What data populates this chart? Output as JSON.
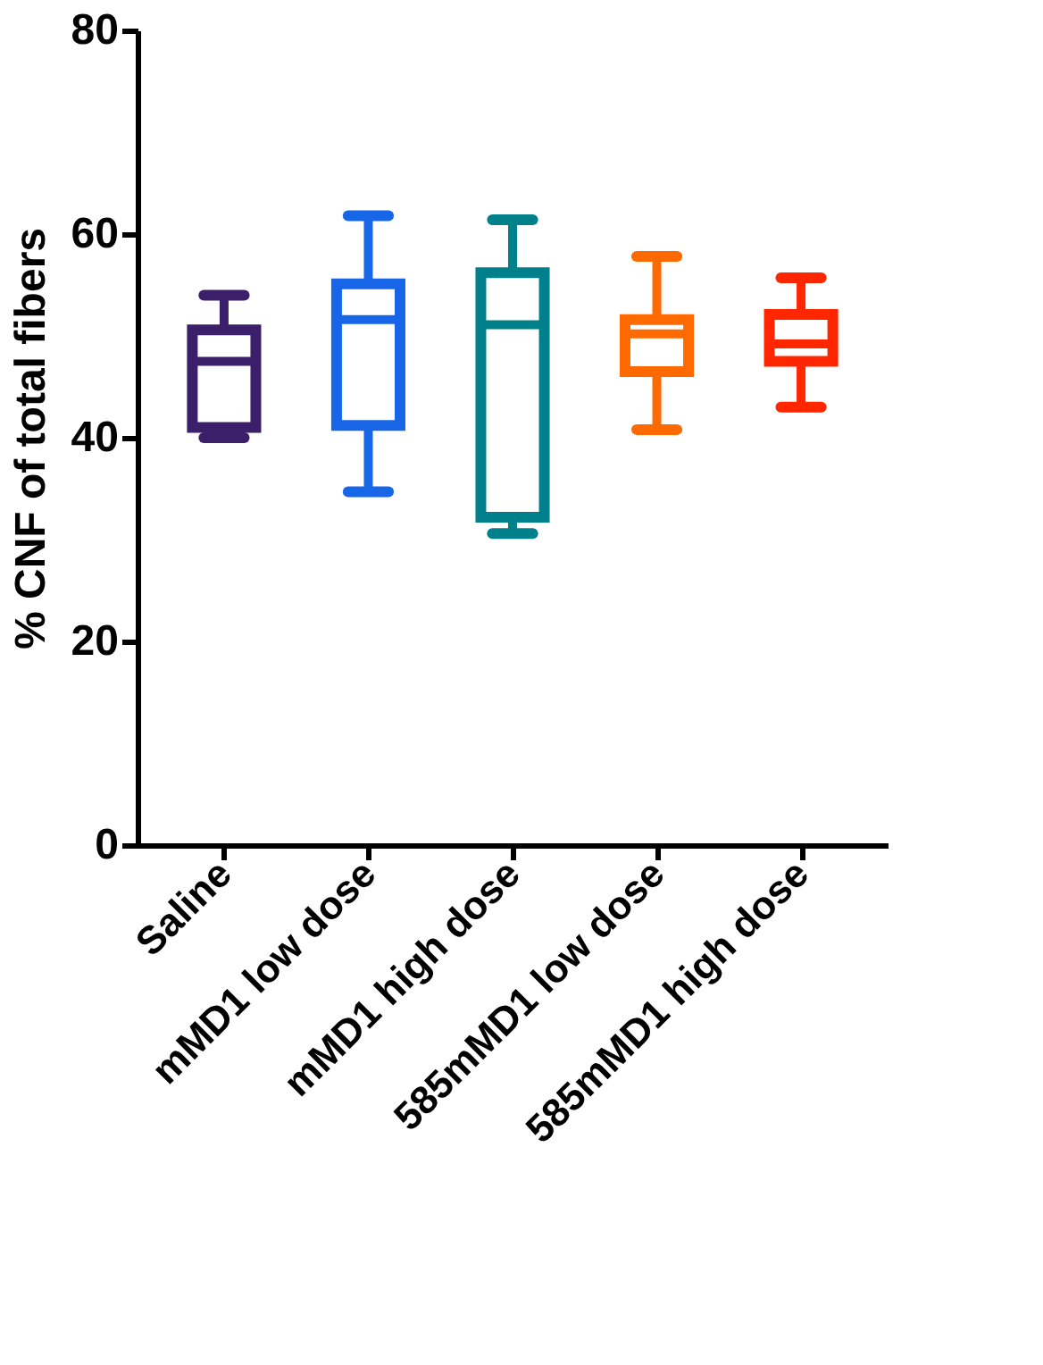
{
  "chart_data": {
    "type": "box",
    "ylabel": "% CNF of total fibers",
    "categories": [
      "Saline",
      "mMD1 low dose",
      "mMD1 high dose",
      "585mMD1 low dose",
      "585mMD1 high dose"
    ],
    "boxes": [
      {
        "low": 40,
        "q1": 41,
        "median": 47.5,
        "q3": 50.6,
        "high": 54
      },
      {
        "low": 34.7,
        "q1": 41.2,
        "median": 51.6,
        "q3": 55.1,
        "high": 61.8
      },
      {
        "low": 30.6,
        "q1": 32.2,
        "median": 51.1,
        "q3": 56.2,
        "high": 61.4
      },
      {
        "low": 40.8,
        "q1": 46.5,
        "median": 50.2,
        "q3": 51.6,
        "high": 57.8
      },
      {
        "low": 43,
        "q1": 47.5,
        "median": 49.2,
        "q3": 52.1,
        "high": 55.7
      }
    ],
    "colors": [
      "#3b1f6b",
      "#1766e8",
      "#00808a",
      "#ff6a00",
      "#ff2600"
    ],
    "ylim": [
      0,
      80
    ],
    "yticks": [
      0,
      20,
      40,
      60,
      80
    ],
    "grid": false,
    "legend": false
  }
}
